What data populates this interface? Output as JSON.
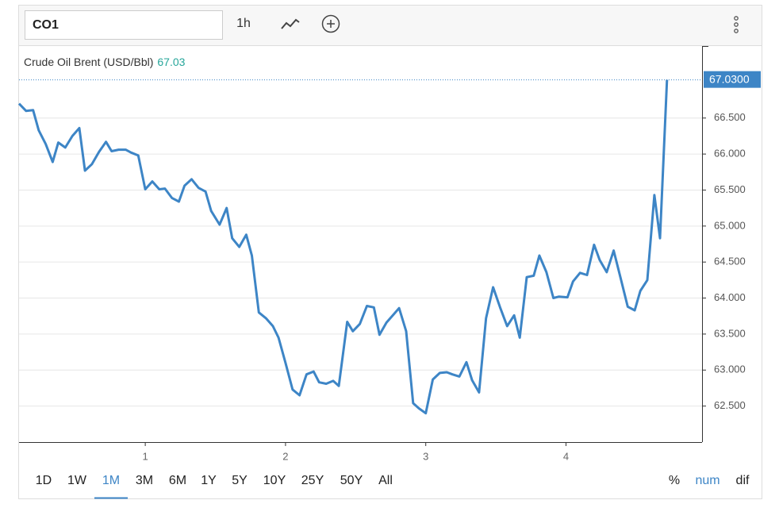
{
  "toolbar": {
    "symbol": "CO1",
    "interval": "1h"
  },
  "chart_data": {
    "type": "line",
    "title": "Crude Oil Brent (USD/Bbl)",
    "last_value": {
      "value": 67.03,
      "label": "67.0300"
    },
    "color": "#3d85c6",
    "x": [
      0.1,
      0.15,
      0.2,
      0.24,
      0.29,
      0.34,
      0.38,
      0.43,
      0.48,
      0.53,
      0.57,
      0.62,
      0.67,
      0.72,
      0.76,
      0.81,
      0.86,
      0.9,
      0.95,
      1.0,
      1.05,
      1.1,
      1.14,
      1.19,
      1.24,
      1.28,
      1.33,
      1.38,
      1.43,
      1.47,
      1.53,
      1.58,
      1.62,
      1.67,
      1.72,
      1.76,
      1.81,
      1.86,
      1.91,
      1.95,
      2.0,
      2.05,
      2.1,
      2.15,
      2.2,
      2.24,
      2.29,
      2.34,
      2.38,
      2.44,
      2.48,
      2.53,
      2.58,
      2.63,
      2.67,
      2.72,
      2.77,
      2.81,
      2.86,
      2.91,
      2.95,
      3.0,
      3.05,
      3.1,
      3.15,
      3.19,
      3.24,
      3.29,
      3.33,
      3.38,
      3.43,
      3.48,
      3.53,
      3.58,
      3.63,
      3.67,
      3.72,
      3.77,
      3.81,
      3.86,
      3.91,
      3.95,
      4.01,
      4.05,
      4.1,
      4.15,
      4.2,
      4.24,
      4.29,
      4.34,
      4.39,
      4.44,
      4.49,
      4.53,
      4.58,
      4.63,
      4.67,
      4.72
    ],
    "values": [
      66.7,
      66.6,
      66.61,
      66.33,
      66.14,
      65.89,
      66.16,
      66.09,
      66.25,
      66.36,
      65.77,
      65.86,
      66.03,
      66.17,
      66.04,
      66.06,
      66.06,
      66.02,
      65.98,
      65.51,
      65.62,
      65.51,
      65.52,
      65.39,
      65.34,
      65.56,
      65.65,
      65.53,
      65.48,
      65.21,
      65.02,
      65.25,
      64.83,
      64.71,
      64.88,
      64.59,
      63.8,
      63.72,
      63.61,
      63.45,
      63.1,
      62.73,
      62.65,
      62.94,
      62.98,
      62.83,
      62.81,
      62.85,
      62.78,
      63.67,
      63.54,
      63.64,
      63.89,
      63.87,
      63.49,
      63.66,
      63.77,
      63.86,
      63.54,
      62.54,
      62.47,
      62.4,
      62.87,
      62.96,
      62.97,
      62.94,
      62.91,
      63.11,
      62.86,
      62.69,
      63.72,
      64.15,
      63.87,
      63.61,
      63.76,
      63.45,
      64.29,
      64.31,
      64.59,
      64.36,
      64.0,
      64.02,
      64.01,
      64.23,
      64.35,
      64.32,
      64.74,
      64.53,
      64.36,
      64.66,
      64.27,
      63.88,
      63.83,
      64.1,
      64.25,
      65.43,
      64.83,
      67.03
    ],
    "xlim": [
      0.1,
      4.97
    ],
    "xticks": [
      1,
      2,
      3,
      4
    ],
    "ylim": [
      62.0,
      67.5
    ],
    "yticks": [
      {
        "value": 62.5,
        "label": "62.500"
      },
      {
        "value": 63,
        "label": "63.000"
      },
      {
        "value": 63.5,
        "label": "63.500"
      },
      {
        "value": 64,
        "label": "64.000"
      },
      {
        "value": 64.5,
        "label": "64.500"
      },
      {
        "value": 65,
        "label": "65.000"
      },
      {
        "value": 65.5,
        "label": "65.500"
      },
      {
        "value": 66,
        "label": "66.000"
      },
      {
        "value": 66.5,
        "label": "66.500"
      }
    ],
    "grid": true
  },
  "ranges": [
    {
      "label": "1D"
    },
    {
      "label": "1W"
    },
    {
      "label": "1M",
      "selected": true
    },
    {
      "label": "3M"
    },
    {
      "label": "6M"
    },
    {
      "label": "1Y"
    },
    {
      "label": "5Y"
    },
    {
      "label": "10Y"
    },
    {
      "label": "25Y"
    },
    {
      "label": "50Y"
    },
    {
      "label": "All"
    }
  ],
  "modes": [
    {
      "label": "%"
    },
    {
      "label": "num",
      "selected": true
    },
    {
      "label": "dif"
    }
  ]
}
